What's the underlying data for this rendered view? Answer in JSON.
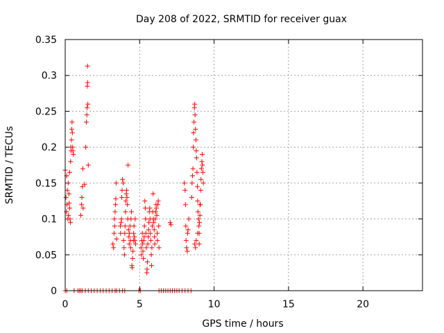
{
  "chart_data": {
    "type": "scatter",
    "title": "Day 208 of 2022, SRMTID for receiver guax",
    "xlabel": "GPS time / hours",
    "ylabel": "SRMTID / TECUs",
    "xlim": [
      0,
      24
    ],
    "ylim": [
      0,
      0.35
    ],
    "xticks": [
      0,
      5,
      10,
      15,
      20
    ],
    "xtick_labels": [
      "0",
      "5",
      "10",
      "15",
      "20"
    ],
    "yticks": [
      0,
      0.05,
      0.1,
      0.15,
      0.2,
      0.25,
      0.3,
      0.35
    ],
    "ytick_labels": [
      "0",
      "0.05",
      "0.1",
      "0.15",
      "0.2",
      "0.25",
      "0.3",
      "0.35"
    ],
    "grid": true,
    "marker": "+",
    "color": "#ff0000",
    "series": [
      {
        "name": "SRMTID",
        "points": [
          [
            0.0,
            0.168
          ],
          [
            0.05,
            0.13
          ],
          [
            0.08,
            0.11
          ],
          [
            0.1,
            0.16
          ],
          [
            0.12,
            0.12
          ],
          [
            0.14,
            0.14
          ],
          [
            0.18,
            0.1
          ],
          [
            0.2,
            0.15
          ],
          [
            0.22,
            0.105
          ],
          [
            0.25,
            0.135
          ],
          [
            0.27,
            0.122
          ],
          [
            0.3,
            0.115
          ],
          [
            0.32,
            0.1
          ],
          [
            0.35,
            0.095
          ],
          [
            0.36,
            0.18
          ],
          [
            0.38,
            0.2
          ],
          [
            0.4,
            0.195
          ],
          [
            0.42,
            0.21
          ],
          [
            0.44,
            0.225
          ],
          [
            0.46,
            0.235
          ],
          [
            0.48,
            0.22
          ],
          [
            0.5,
            0.2
          ],
          [
            0.52,
            0.195
          ],
          [
            0.55,
            0.19
          ],
          [
            0.3,
            0.165
          ],
          [
            1.05,
            0.105
          ],
          [
            1.1,
            0.12
          ],
          [
            1.12,
            0.13
          ],
          [
            1.15,
            0.145
          ],
          [
            1.18,
            0.17
          ],
          [
            1.2,
            0.115
          ],
          [
            1.3,
            0.148
          ],
          [
            1.38,
            0.2
          ],
          [
            1.42,
            0.235
          ],
          [
            1.45,
            0.245
          ],
          [
            1.47,
            0.255
          ],
          [
            1.48,
            0.285
          ],
          [
            1.5,
            0.29
          ],
          [
            1.5,
            0.313
          ],
          [
            1.52,
            0.26
          ],
          [
            1.55,
            0.175
          ],
          [
            3.2,
            0.065
          ],
          [
            3.25,
            0.06
          ],
          [
            3.28,
            0.08
          ],
          [
            3.3,
            0.1
          ],
          [
            3.32,
            0.09
          ],
          [
            3.35,
            0.11
          ],
          [
            3.38,
            0.12
          ],
          [
            3.4,
            0.128
          ],
          [
            3.42,
            0.15
          ],
          [
            3.45,
            0.072
          ],
          [
            3.7,
            0.09
          ],
          [
            3.72,
            0.08
          ],
          [
            3.75,
            0.095
          ],
          [
            3.78,
            0.1
          ],
          [
            3.8,
            0.13
          ],
          [
            3.82,
            0.14
          ],
          [
            3.85,
            0.155
          ],
          [
            3.9,
            0.15
          ],
          [
            3.92,
            0.07
          ],
          [
            3.95,
            0.06
          ],
          [
            3.98,
            0.05
          ],
          [
            4.0,
            0.08
          ],
          [
            4.02,
            0.09
          ],
          [
            4.05,
            0.11
          ],
          [
            4.08,
            0.125
          ],
          [
            4.1,
            0.135
          ],
          [
            4.12,
            0.14
          ],
          [
            4.15,
            0.13
          ],
          [
            4.18,
            0.12
          ],
          [
            4.2,
            0.1
          ],
          [
            4.22,
            0.175
          ],
          [
            4.25,
            0.085
          ],
          [
            4.28,
            0.075
          ],
          [
            4.3,
            0.065
          ],
          [
            4.32,
            0.08
          ],
          [
            4.35,
            0.09
          ],
          [
            4.38,
            0.07
          ],
          [
            4.4,
            0.06
          ],
          [
            4.42,
            0.1
          ],
          [
            4.45,
            0.11
          ],
          [
            4.48,
            0.035
          ],
          [
            4.5,
            0.032
          ],
          [
            4.52,
            0.045
          ],
          [
            4.55,
            0.055
          ],
          [
            4.58,
            0.07
          ],
          [
            4.6,
            0.08
          ],
          [
            4.62,
            0.09
          ],
          [
            4.65,
            0.075
          ],
          [
            4.68,
            0.07
          ],
          [
            4.7,
            0.1
          ],
          [
            4.72,
            0.065
          ],
          [
            5.1,
            0.06
          ],
          [
            5.12,
            0.05
          ],
          [
            5.15,
            0.07
          ],
          [
            5.18,
            0.08
          ],
          [
            5.2,
            0.065
          ],
          [
            5.22,
            0.055
          ],
          [
            5.25,
            0.045
          ],
          [
            5.28,
            0.07
          ],
          [
            5.3,
            0.075
          ],
          [
            5.32,
            0.09
          ],
          [
            5.35,
            0.125
          ],
          [
            5.38,
            0.115
          ],
          [
            5.4,
            0.1
          ],
          [
            5.42,
            0.08
          ],
          [
            5.45,
            0.06
          ],
          [
            5.48,
            0.025
          ],
          [
            5.5,
            0.03
          ],
          [
            5.52,
            0.04
          ],
          [
            5.55,
            0.065
          ],
          [
            5.58,
            0.075
          ],
          [
            5.6,
            0.085
          ],
          [
            5.62,
            0.095
          ],
          [
            5.65,
            0.11
          ],
          [
            5.68,
            0.115
          ],
          [
            5.7,
            0.1
          ],
          [
            5.72,
            0.08
          ],
          [
            5.75,
            0.07
          ],
          [
            5.78,
            0.05
          ],
          [
            5.8,
            0.035
          ],
          [
            5.82,
            0.06
          ],
          [
            5.85,
            0.09
          ],
          [
            5.88,
            0.11
          ],
          [
            5.9,
            0.135
          ],
          [
            5.92,
            0.1
          ],
          [
            5.95,
            0.095
          ],
          [
            5.98,
            0.085
          ],
          [
            6.0,
            0.075
          ],
          [
            6.02,
            0.065
          ],
          [
            6.05,
            0.1
          ],
          [
            6.08,
            0.11
          ],
          [
            6.1,
            0.12
          ],
          [
            6.12,
            0.115
          ],
          [
            6.15,
            0.105
          ],
          [
            6.18,
            0.08
          ],
          [
            6.2,
            0.07
          ],
          [
            6.22,
            0.12
          ],
          [
            6.25,
            0.125
          ],
          [
            6.28,
            0.09
          ],
          [
            6.3,
            0.06
          ],
          [
            7.05,
            0.095
          ],
          [
            7.1,
            0.092
          ],
          [
            8.0,
            0.15
          ],
          [
            8.05,
            0.14
          ],
          [
            8.08,
            0.12
          ],
          [
            8.1,
            0.09
          ],
          [
            8.12,
            0.07
          ],
          [
            8.15,
            0.06
          ],
          [
            8.2,
            0.055
          ],
          [
            8.22,
            0.08
          ],
          [
            8.25,
            0.085
          ],
          [
            8.3,
            0.1
          ],
          [
            8.5,
            0.13
          ],
          [
            8.52,
            0.15
          ],
          [
            8.55,
            0.16
          ],
          [
            8.58,
            0.17
          ],
          [
            8.6,
            0.2
          ],
          [
            8.62,
            0.22
          ],
          [
            8.65,
            0.235
          ],
          [
            8.68,
            0.255
          ],
          [
            8.7,
            0.26
          ],
          [
            8.72,
            0.245
          ],
          [
            8.75,
            0.225
          ],
          [
            8.78,
            0.21
          ],
          [
            8.8,
            0.195
          ],
          [
            8.82,
            0.185
          ],
          [
            8.85,
            0.165
          ],
          [
            8.88,
            0.145
          ],
          [
            8.9,
            0.125
          ],
          [
            8.92,
            0.11
          ],
          [
            8.95,
            0.1
          ],
          [
            8.98,
            0.09
          ],
          [
            9.0,
            0.08
          ],
          [
            9.02,
            0.095
          ],
          [
            9.05,
            0.105
          ],
          [
            9.08,
            0.12
          ],
          [
            9.1,
            0.14
          ],
          [
            9.12,
            0.155
          ],
          [
            9.15,
            0.17
          ],
          [
            9.18,
            0.18
          ],
          [
            9.2,
            0.19
          ],
          [
            9.22,
            0.175
          ],
          [
            9.25,
            0.165
          ],
          [
            9.28,
            0.15
          ],
          [
            8.7,
            0.065
          ],
          [
            8.75,
            0.06
          ],
          [
            8.8,
            0.07
          ],
          [
            8.9,
            0.08
          ],
          [
            9.0,
            0.065
          ],
          [
            9.05,
            0.12
          ],
          [
            0.0,
            0.0
          ],
          [
            0.1,
            0.0
          ],
          [
            0.6,
            0.0
          ],
          [
            0.85,
            0.0
          ],
          [
            0.95,
            0.0
          ],
          [
            1.05,
            0.0
          ],
          [
            1.15,
            0.0
          ],
          [
            1.35,
            0.0
          ],
          [
            1.55,
            0.0
          ],
          [
            1.75,
            0.0
          ],
          [
            1.95,
            0.0
          ],
          [
            2.15,
            0.0
          ],
          [
            2.35,
            0.0
          ],
          [
            2.55,
            0.0
          ],
          [
            2.75,
            0.0
          ],
          [
            2.95,
            0.0
          ],
          [
            3.15,
            0.0
          ],
          [
            3.35,
            0.0
          ],
          [
            3.45,
            0.0
          ],
          [
            3.65,
            0.0
          ],
          [
            3.85,
            0.0
          ],
          [
            4.0,
            0.0
          ],
          [
            4.95,
            0.0
          ],
          [
            5.05,
            0.0
          ],
          [
            6.3,
            0.0
          ],
          [
            6.45,
            0.0
          ],
          [
            6.6,
            0.0
          ],
          [
            6.75,
            0.0
          ],
          [
            6.9,
            0.0
          ],
          [
            7.05,
            0.0
          ],
          [
            7.2,
            0.0
          ],
          [
            7.35,
            0.0
          ],
          [
            7.5,
            0.0
          ],
          [
            7.65,
            0.0
          ],
          [
            7.85,
            0.0
          ],
          [
            8.05,
            0.0
          ],
          [
            8.25,
            0.0
          ],
          [
            8.45,
            0.0
          ]
        ]
      }
    ]
  }
}
